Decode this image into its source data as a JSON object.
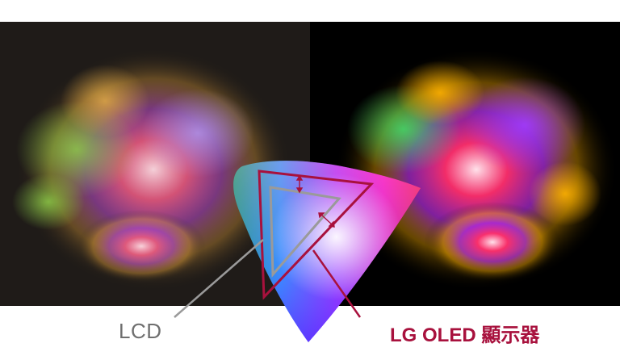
{
  "labels": {
    "lcd": "LCD",
    "oled": "LG OLED 顯示器"
  },
  "panels": {
    "lcd_background": "#1f1b18",
    "oled_background": "#000000"
  },
  "colors": {
    "lcd_triangle": "#9a9a9a",
    "oled_triangle": "#a8113d",
    "lcd_text": "#6f6f6f",
    "oled_text": "#a8113d"
  }
}
